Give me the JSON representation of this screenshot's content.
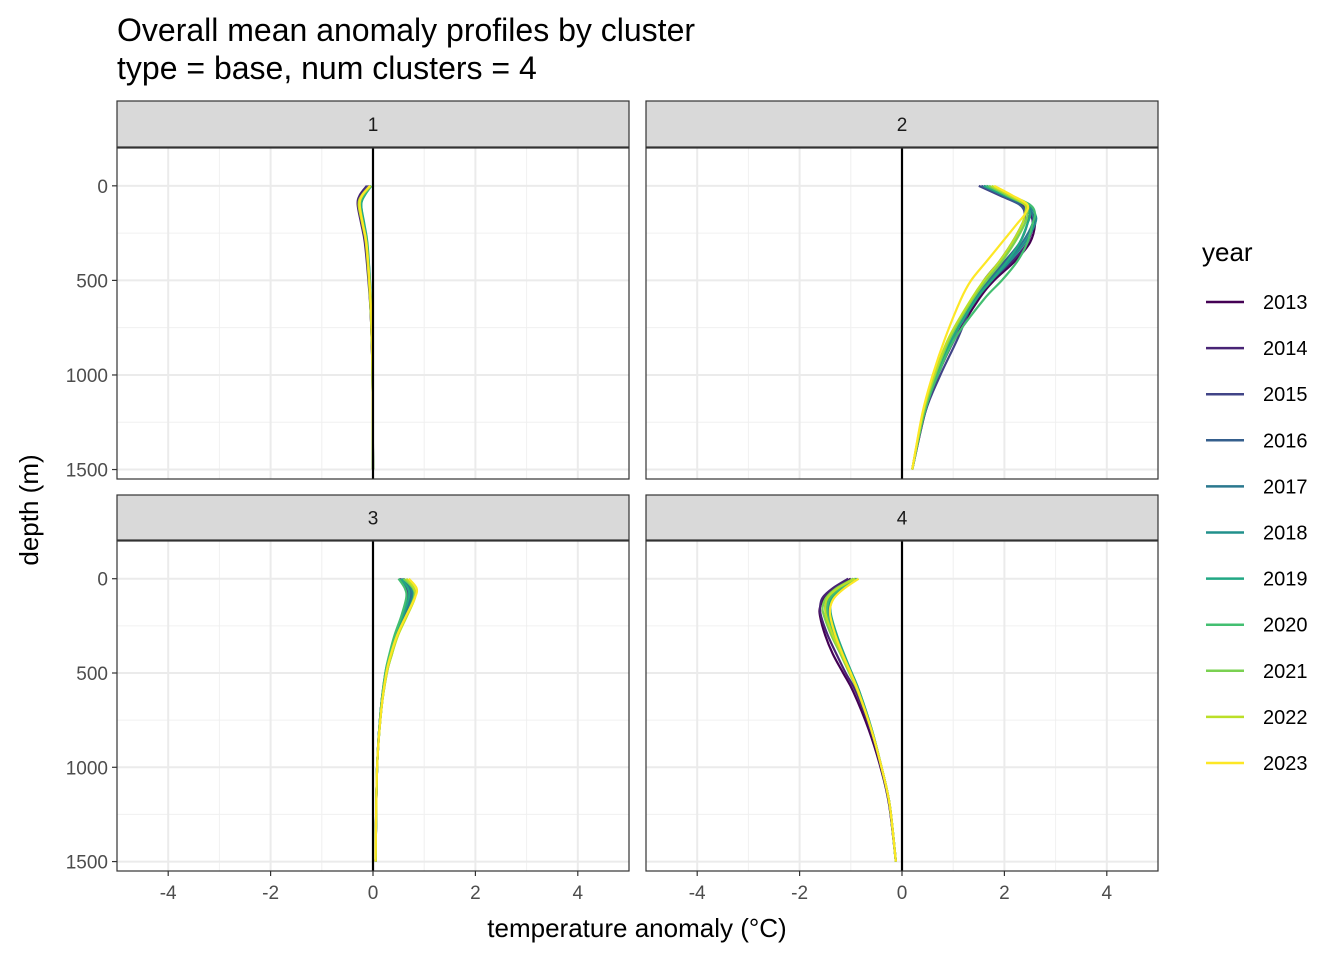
{
  "chart_data": {
    "type": "line",
    "title": "Overall mean anomaly profiles by cluster",
    "subtitle": "type = base, num clusters = 4",
    "xlabel": "temperature anomaly (°C)",
    "ylabel": "depth (m)",
    "xlim": [
      -5,
      5
    ],
    "ylim": [
      1550,
      -200
    ],
    "y_reversed": true,
    "x_ticks": [
      -4,
      -2,
      0,
      2,
      4
    ],
    "y_ticks": [
      0,
      500,
      1000,
      1500
    ],
    "grid": true,
    "legend_title": "year",
    "legend_position": "right",
    "series": [
      {
        "name": "2013",
        "color": "#440154"
      },
      {
        "name": "2014",
        "color": "#482475"
      },
      {
        "name": "2015",
        "color": "#414487"
      },
      {
        "name": "2016",
        "color": "#355F8D"
      },
      {
        "name": "2017",
        "color": "#2A788E"
      },
      {
        "name": "2018",
        "color": "#21908C"
      },
      {
        "name": "2019",
        "color": "#22A884"
      },
      {
        "name": "2020",
        "color": "#43BF71"
      },
      {
        "name": "2021",
        "color": "#7AD151"
      },
      {
        "name": "2022",
        "color": "#BBDF27"
      },
      {
        "name": "2023",
        "color": "#FDE725"
      }
    ],
    "panels": [
      {
        "label": "1",
        "depth": [
          0,
          50,
          100,
          200,
          300,
          500,
          700,
          1000,
          1500
        ],
        "profiles": {
          "2013": [
            -0.08,
            -0.25,
            -0.28,
            -0.22,
            -0.15,
            -0.08,
            -0.04,
            -0.01,
            0.0
          ],
          "2014": [
            -0.12,
            -0.26,
            -0.3,
            -0.23,
            -0.16,
            -0.09,
            -0.04,
            -0.01,
            0.0
          ],
          "2015": [
            -0.1,
            -0.22,
            -0.26,
            -0.2,
            -0.14,
            -0.08,
            -0.04,
            -0.01,
            0.0
          ],
          "2016": [
            -0.06,
            -0.2,
            -0.25,
            -0.19,
            -0.13,
            -0.07,
            -0.03,
            -0.01,
            0.0
          ],
          "2017": [
            -0.05,
            -0.18,
            -0.24,
            -0.18,
            -0.12,
            -0.07,
            -0.03,
            -0.01,
            0.0
          ],
          "2018": [
            -0.04,
            -0.17,
            -0.23,
            -0.18,
            -0.12,
            -0.06,
            -0.03,
            -0.01,
            0.0
          ],
          "2019": [
            -0.03,
            -0.16,
            -0.23,
            -0.17,
            -0.11,
            -0.06,
            -0.03,
            -0.01,
            0.0
          ],
          "2020": [
            -0.03,
            -0.18,
            -0.25,
            -0.19,
            -0.12,
            -0.07,
            -0.03,
            -0.01,
            0.0
          ],
          "2021": [
            -0.04,
            -0.2,
            -0.27,
            -0.2,
            -0.13,
            -0.07,
            -0.03,
            -0.01,
            0.0
          ],
          "2022": [
            -0.05,
            -0.22,
            -0.28,
            -0.21,
            -0.14,
            -0.08,
            -0.04,
            -0.01,
            0.0
          ],
          "2023": [
            -0.06,
            -0.21,
            -0.26,
            -0.2,
            -0.13,
            -0.07,
            -0.03,
            -0.01,
            0.0
          ]
        }
      },
      {
        "label": "2",
        "depth": [
          0,
          50,
          100,
          150,
          200,
          300,
          400,
          500,
          600,
          800,
          1000,
          1200,
          1500
        ],
        "profiles": {
          "2013": [
            1.6,
            2.0,
            2.4,
            2.55,
            2.6,
            2.5,
            2.2,
            1.8,
            1.5,
            1.05,
            0.7,
            0.45,
            0.2
          ],
          "2014": [
            1.55,
            1.95,
            2.35,
            2.5,
            2.55,
            2.45,
            2.15,
            1.75,
            1.45,
            1.0,
            0.68,
            0.43,
            0.2
          ],
          "2015": [
            1.5,
            1.9,
            2.3,
            2.4,
            2.35,
            2.15,
            1.9,
            1.6,
            1.4,
            1.1,
            0.75,
            0.45,
            0.2
          ],
          "2016": [
            1.55,
            1.95,
            2.3,
            2.45,
            2.45,
            2.3,
            2.0,
            1.65,
            1.38,
            0.98,
            0.68,
            0.43,
            0.2
          ],
          "2017": [
            1.6,
            2.0,
            2.4,
            2.55,
            2.55,
            2.35,
            2.05,
            1.7,
            1.4,
            0.98,
            0.67,
            0.42,
            0.2
          ],
          "2018": [
            1.65,
            2.05,
            2.45,
            2.6,
            2.6,
            2.4,
            2.1,
            1.75,
            1.42,
            0.98,
            0.67,
            0.42,
            0.2
          ],
          "2019": [
            1.6,
            2.0,
            2.4,
            2.5,
            2.45,
            2.3,
            2.05,
            1.75,
            1.45,
            1.0,
            0.68,
            0.43,
            0.2
          ],
          "2020": [
            1.65,
            2.1,
            2.5,
            2.6,
            2.55,
            2.45,
            2.25,
            1.95,
            1.6,
            1.05,
            0.7,
            0.44,
            0.2
          ],
          "2021": [
            1.7,
            2.05,
            2.4,
            2.45,
            2.4,
            2.2,
            1.95,
            1.65,
            1.38,
            0.95,
            0.65,
            0.42,
            0.2
          ],
          "2022": [
            1.75,
            2.1,
            2.4,
            2.4,
            2.35,
            2.15,
            1.9,
            1.6,
            1.35,
            0.92,
            0.63,
            0.41,
            0.2
          ],
          "2023": [
            1.8,
            2.15,
            2.45,
            2.4,
            2.25,
            1.95,
            1.65,
            1.35,
            1.15,
            0.85,
            0.6,
            0.4,
            0.2
          ]
        }
      },
      {
        "label": "3",
        "depth": [
          0,
          50,
          100,
          200,
          300,
          400,
          500,
          700,
          1000,
          1500
        ],
        "profiles": {
          "2013": [
            0.55,
            0.7,
            0.72,
            0.6,
            0.45,
            0.35,
            0.25,
            0.15,
            0.08,
            0.05
          ],
          "2014": [
            0.52,
            0.68,
            0.7,
            0.58,
            0.44,
            0.34,
            0.25,
            0.15,
            0.08,
            0.05
          ],
          "2015": [
            0.5,
            0.65,
            0.68,
            0.57,
            0.43,
            0.33,
            0.24,
            0.15,
            0.08,
            0.05
          ],
          "2016": [
            0.55,
            0.68,
            0.72,
            0.6,
            0.46,
            0.35,
            0.26,
            0.16,
            0.08,
            0.05
          ],
          "2017": [
            0.58,
            0.72,
            0.75,
            0.62,
            0.47,
            0.36,
            0.26,
            0.16,
            0.08,
            0.05
          ],
          "2018": [
            0.6,
            0.75,
            0.78,
            0.64,
            0.48,
            0.37,
            0.27,
            0.16,
            0.08,
            0.05
          ],
          "2019": [
            0.55,
            0.68,
            0.7,
            0.58,
            0.44,
            0.34,
            0.25,
            0.15,
            0.08,
            0.05
          ],
          "2020": [
            0.5,
            0.62,
            0.65,
            0.55,
            0.42,
            0.32,
            0.24,
            0.15,
            0.08,
            0.05
          ],
          "2021": [
            0.6,
            0.78,
            0.8,
            0.65,
            0.48,
            0.36,
            0.26,
            0.16,
            0.08,
            0.05
          ],
          "2022": [
            0.65,
            0.8,
            0.82,
            0.66,
            0.49,
            0.37,
            0.27,
            0.16,
            0.08,
            0.05
          ],
          "2023": [
            0.7,
            0.85,
            0.82,
            0.64,
            0.47,
            0.35,
            0.26,
            0.16,
            0.08,
            0.05
          ]
        }
      },
      {
        "label": "4",
        "depth": [
          0,
          50,
          100,
          150,
          200,
          300,
          400,
          500,
          600,
          800,
          1000,
          1200,
          1500
        ],
        "profiles": {
          "2013": [
            -1.0,
            -1.3,
            -1.5,
            -1.6,
            -1.6,
            -1.5,
            -1.35,
            -1.15,
            -0.95,
            -0.65,
            -0.42,
            -0.25,
            -0.12
          ],
          "2014": [
            -1.05,
            -1.35,
            -1.55,
            -1.6,
            -1.58,
            -1.45,
            -1.28,
            -1.1,
            -0.9,
            -0.62,
            -0.41,
            -0.25,
            -0.12
          ],
          "2015": [
            -0.95,
            -1.25,
            -1.45,
            -1.5,
            -1.45,
            -1.3,
            -1.15,
            -1.0,
            -0.85,
            -0.6,
            -0.4,
            -0.24,
            -0.12
          ],
          "2016": [
            -0.92,
            -1.22,
            -1.42,
            -1.48,
            -1.45,
            -1.32,
            -1.16,
            -1.0,
            -0.85,
            -0.6,
            -0.4,
            -0.24,
            -0.12
          ],
          "2017": [
            -0.9,
            -1.2,
            -1.4,
            -1.45,
            -1.42,
            -1.3,
            -1.15,
            -1.0,
            -0.84,
            -0.6,
            -0.4,
            -0.24,
            -0.12
          ],
          "2018": [
            -0.88,
            -1.18,
            -1.38,
            -1.42,
            -1.4,
            -1.28,
            -1.14,
            -0.98,
            -0.83,
            -0.59,
            -0.4,
            -0.24,
            -0.12
          ],
          "2019": [
            -0.85,
            -1.15,
            -1.35,
            -1.4,
            -1.38,
            -1.27,
            -1.13,
            -0.98,
            -0.83,
            -0.59,
            -0.4,
            -0.24,
            -0.12
          ],
          "2020": [
            -0.9,
            -1.2,
            -1.4,
            -1.46,
            -1.45,
            -1.32,
            -1.17,
            -1.01,
            -0.85,
            -0.6,
            -0.4,
            -0.24,
            -0.12
          ],
          "2021": [
            -0.95,
            -1.28,
            -1.48,
            -1.55,
            -1.52,
            -1.38,
            -1.2,
            -1.03,
            -0.86,
            -0.6,
            -0.4,
            -0.24,
            -0.12
          ],
          "2022": [
            -0.92,
            -1.25,
            -1.45,
            -1.5,
            -1.48,
            -1.35,
            -1.18,
            -1.02,
            -0.86,
            -0.6,
            -0.4,
            -0.24,
            -0.12
          ],
          "2023": [
            -0.85,
            -1.12,
            -1.32,
            -1.4,
            -1.4,
            -1.3,
            -1.16,
            -1.0,
            -0.85,
            -0.6,
            -0.4,
            -0.24,
            -0.12
          ]
        }
      }
    ]
  }
}
